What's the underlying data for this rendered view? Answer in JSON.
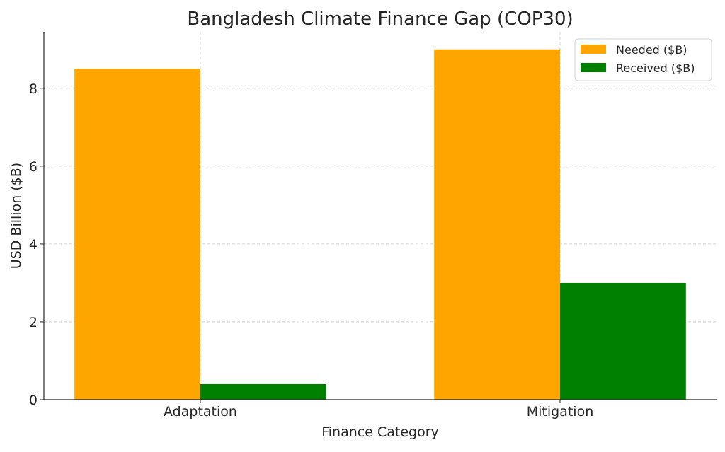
{
  "chart_data": {
    "type": "bar",
    "title": "Bangladesh Climate Finance Gap (COP30)",
    "xlabel": "Finance Category",
    "ylabel": "USD Billion ($B)",
    "categories": [
      "Adaptation",
      "Mitigation"
    ],
    "series": [
      {
        "name": "Needed ($B)",
        "color": "#ffa500",
        "values": [
          8.5,
          9.0
        ]
      },
      {
        "name": "Received ($B)",
        "color": "#008000",
        "values": [
          0.4,
          3.0
        ]
      }
    ],
    "ylim": [
      0,
      9.45
    ],
    "yticks": [
      0,
      2,
      4,
      6,
      8
    ],
    "grid": true,
    "legend": "top-right"
  }
}
